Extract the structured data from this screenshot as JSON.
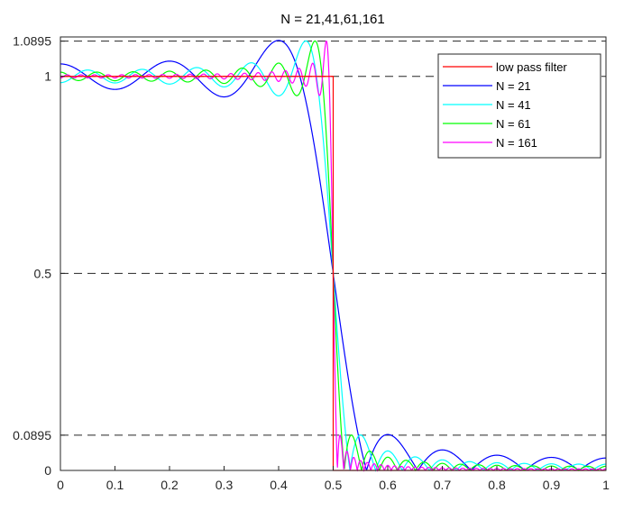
{
  "chart_data": {
    "type": "line",
    "title": "N = 21,41,61,161",
    "xlabel": "",
    "ylabel": "",
    "xlim": [
      0,
      1
    ],
    "ylim": [
      0,
      1.1
    ],
    "x_ticks": [
      {
        "value": 0,
        "label": "0"
      },
      {
        "value": 0.1,
        "label": "0.1"
      },
      {
        "value": 0.2,
        "label": "0.2"
      },
      {
        "value": 0.3,
        "label": "0.3"
      },
      {
        "value": 0.4,
        "label": "0.4"
      },
      {
        "value": 0.5,
        "label": "0.5"
      },
      {
        "value": 0.6,
        "label": "0.6"
      },
      {
        "value": 0.7,
        "label": "0.7"
      },
      {
        "value": 0.8,
        "label": "0.8"
      },
      {
        "value": 0.9,
        "label": "0.9"
      },
      {
        "value": 1,
        "label": "1"
      }
    ],
    "y_ticks": [
      {
        "value": 0,
        "label": "0"
      },
      {
        "value": 0.0895,
        "label": "0.0895"
      },
      {
        "value": 0.5,
        "label": "0.5"
      },
      {
        "value": 1,
        "label": "1"
      },
      {
        "value": 1.0895,
        "label": "1.0895"
      }
    ],
    "reference_lines": [
      {
        "y": 1.0895,
        "style": "dashed"
      },
      {
        "y": 1,
        "style": "dashed"
      },
      {
        "y": 0.5,
        "style": "dashed"
      },
      {
        "y": 0.0895,
        "style": "dashed"
      }
    ],
    "grid": false,
    "legend_position": "top-right",
    "cutoff": 0.5,
    "series": [
      {
        "name": "low pass filter",
        "kind": "ideal",
        "color": "#ff0000"
      },
      {
        "name": "N = 21",
        "kind": "truncated",
        "taps": 21,
        "color": "#0000ff"
      },
      {
        "name": "N = 41",
        "kind": "truncated",
        "taps": 41,
        "color": "#00ffff"
      },
      {
        "name": "N = 61",
        "kind": "truncated",
        "taps": 61,
        "color": "#00ff00"
      },
      {
        "name": "N = 161",
        "kind": "truncated",
        "taps": 161,
        "color": "#ff00ff"
      }
    ]
  }
}
